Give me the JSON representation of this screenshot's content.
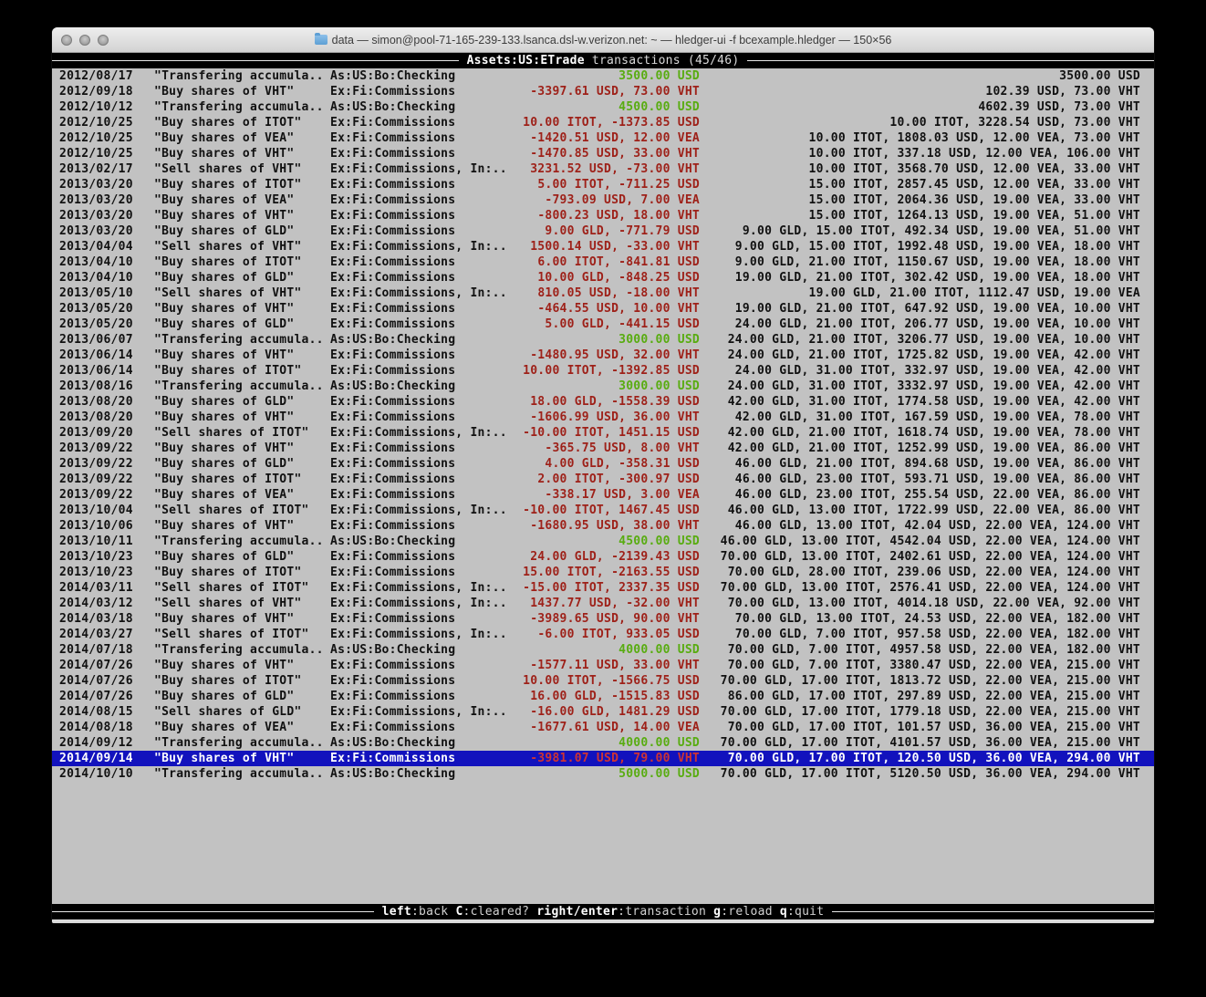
{
  "colors": {
    "red": "#9e2119",
    "green": "#58ac10",
    "selection": "#1212bd",
    "selection-red": "#cd3434",
    "terminal-bg": "#c2c2c2",
    "bar-bg": "#000000"
  },
  "window": {
    "title": "data — simon@pool-71-165-239-133.lsanca.dsl-w.verizon.net: ~ — hledger-ui -f bcexample.hledger — 150×56"
  },
  "screen": {
    "title_account": "Assets:US:ETrade",
    "title_suffix": " transactions (45/46)"
  },
  "statusbar": {
    "items": [
      {
        "key": "left",
        "label": ":back"
      },
      {
        "key": "C",
        "label": ":cleared?"
      },
      {
        "key": "right/enter",
        "label": ":transaction"
      },
      {
        "key": "g",
        "label": ":reload"
      },
      {
        "key": "q",
        "label": ":quit"
      }
    ]
  },
  "register": {
    "rows": [
      {
        "date": "2012/08/17",
        "desc": "\"Transfering accumula..",
        "acct": "As:US:Bo:Checking",
        "amt": "3500.00 USD",
        "amt_color": "green",
        "tot": "3500.00 USD",
        "selected": false
      },
      {
        "date": "2012/09/18",
        "desc": "\"Buy shares of VHT\"",
        "acct": "Ex:Fi:Commissions",
        "amt": "-3397.61 USD, 73.00 VHT",
        "amt_color": "red",
        "tot": "102.39 USD, 73.00 VHT",
        "selected": false
      },
      {
        "date": "2012/10/12",
        "desc": "\"Transfering accumula..",
        "acct": "As:US:Bo:Checking",
        "amt": "4500.00 USD",
        "amt_color": "green",
        "tot": "4602.39 USD, 73.00 VHT",
        "selected": false
      },
      {
        "date": "2012/10/25",
        "desc": "\"Buy shares of ITOT\"",
        "acct": "Ex:Fi:Commissions",
        "amt": "10.00 ITOT, -1373.85 USD",
        "amt_color": "red",
        "tot": "10.00 ITOT, 3228.54 USD, 73.00 VHT",
        "selected": false
      },
      {
        "date": "2012/10/25",
        "desc": "\"Buy shares of VEA\"",
        "acct": "Ex:Fi:Commissions",
        "amt": "-1420.51 USD, 12.00 VEA",
        "amt_color": "red",
        "tot": "10.00 ITOT, 1808.03 USD, 12.00 VEA, 73.00 VHT",
        "selected": false
      },
      {
        "date": "2012/10/25",
        "desc": "\"Buy shares of VHT\"",
        "acct": "Ex:Fi:Commissions",
        "amt": "-1470.85 USD, 33.00 VHT",
        "amt_color": "red",
        "tot": "10.00 ITOT, 337.18 USD, 12.00 VEA, 106.00 VHT",
        "selected": false
      },
      {
        "date": "2013/02/17",
        "desc": "\"Sell shares of VHT\"",
        "acct": "Ex:Fi:Commissions, In:..",
        "amt": "3231.52 USD, -73.00 VHT",
        "amt_color": "red",
        "tot": "10.00 ITOT, 3568.70 USD, 12.00 VEA, 33.00 VHT",
        "selected": false
      },
      {
        "date": "2013/03/20",
        "desc": "\"Buy shares of ITOT\"",
        "acct": "Ex:Fi:Commissions",
        "amt": "5.00 ITOT, -711.25 USD",
        "amt_color": "red",
        "tot": "15.00 ITOT, 2857.45 USD, 12.00 VEA, 33.00 VHT",
        "selected": false
      },
      {
        "date": "2013/03/20",
        "desc": "\"Buy shares of VEA\"",
        "acct": "Ex:Fi:Commissions",
        "amt": "-793.09 USD, 7.00 VEA",
        "amt_color": "red",
        "tot": "15.00 ITOT, 2064.36 USD, 19.00 VEA, 33.00 VHT",
        "selected": false
      },
      {
        "date": "2013/03/20",
        "desc": "\"Buy shares of VHT\"",
        "acct": "Ex:Fi:Commissions",
        "amt": "-800.23 USD, 18.00 VHT",
        "amt_color": "red",
        "tot": "15.00 ITOT, 1264.13 USD, 19.00 VEA, 51.00 VHT",
        "selected": false
      },
      {
        "date": "2013/03/20",
        "desc": "\"Buy shares of GLD\"",
        "acct": "Ex:Fi:Commissions",
        "amt": "9.00 GLD, -771.79 USD",
        "amt_color": "red",
        "tot": "9.00 GLD, 15.00 ITOT, 492.34 USD, 19.00 VEA, 51.00 VHT",
        "selected": false
      },
      {
        "date": "2013/04/04",
        "desc": "\"Sell shares of VHT\"",
        "acct": "Ex:Fi:Commissions, In:..",
        "amt": "1500.14 USD, -33.00 VHT",
        "amt_color": "red",
        "tot": "9.00 GLD, 15.00 ITOT, 1992.48 USD, 19.00 VEA, 18.00 VHT",
        "selected": false
      },
      {
        "date": "2013/04/10",
        "desc": "\"Buy shares of ITOT\"",
        "acct": "Ex:Fi:Commissions",
        "amt": "6.00 ITOT, -841.81 USD",
        "amt_color": "red",
        "tot": "9.00 GLD, 21.00 ITOT, 1150.67 USD, 19.00 VEA, 18.00 VHT",
        "selected": false
      },
      {
        "date": "2013/04/10",
        "desc": "\"Buy shares of GLD\"",
        "acct": "Ex:Fi:Commissions",
        "amt": "10.00 GLD, -848.25 USD",
        "amt_color": "red",
        "tot": "19.00 GLD, 21.00 ITOT, 302.42 USD, 19.00 VEA, 18.00 VHT",
        "selected": false
      },
      {
        "date": "2013/05/10",
        "desc": "\"Sell shares of VHT\"",
        "acct": "Ex:Fi:Commissions, In:..",
        "amt": "810.05 USD, -18.00 VHT",
        "amt_color": "red",
        "tot": "19.00 GLD, 21.00 ITOT, 1112.47 USD, 19.00 VEA",
        "selected": false
      },
      {
        "date": "2013/05/20",
        "desc": "\"Buy shares of VHT\"",
        "acct": "Ex:Fi:Commissions",
        "amt": "-464.55 USD, 10.00 VHT",
        "amt_color": "red",
        "tot": "19.00 GLD, 21.00 ITOT, 647.92 USD, 19.00 VEA, 10.00 VHT",
        "selected": false
      },
      {
        "date": "2013/05/20",
        "desc": "\"Buy shares of GLD\"",
        "acct": "Ex:Fi:Commissions",
        "amt": "5.00 GLD, -441.15 USD",
        "amt_color": "red",
        "tot": "24.00 GLD, 21.00 ITOT, 206.77 USD, 19.00 VEA, 10.00 VHT",
        "selected": false
      },
      {
        "date": "2013/06/07",
        "desc": "\"Transfering accumula..",
        "acct": "As:US:Bo:Checking",
        "amt": "3000.00 USD",
        "amt_color": "green",
        "tot": "24.00 GLD, 21.00 ITOT, 3206.77 USD, 19.00 VEA, 10.00 VHT",
        "selected": false
      },
      {
        "date": "2013/06/14",
        "desc": "\"Buy shares of VHT\"",
        "acct": "Ex:Fi:Commissions",
        "amt": "-1480.95 USD, 32.00 VHT",
        "amt_color": "red",
        "tot": "24.00 GLD, 21.00 ITOT, 1725.82 USD, 19.00 VEA, 42.00 VHT",
        "selected": false
      },
      {
        "date": "2013/06/14",
        "desc": "\"Buy shares of ITOT\"",
        "acct": "Ex:Fi:Commissions",
        "amt": "10.00 ITOT, -1392.85 USD",
        "amt_color": "red",
        "tot": "24.00 GLD, 31.00 ITOT, 332.97 USD, 19.00 VEA, 42.00 VHT",
        "selected": false
      },
      {
        "date": "2013/08/16",
        "desc": "\"Transfering accumula..",
        "acct": "As:US:Bo:Checking",
        "amt": "3000.00 USD",
        "amt_color": "green",
        "tot": "24.00 GLD, 31.00 ITOT, 3332.97 USD, 19.00 VEA, 42.00 VHT",
        "selected": false
      },
      {
        "date": "2013/08/20",
        "desc": "\"Buy shares of GLD\"",
        "acct": "Ex:Fi:Commissions",
        "amt": "18.00 GLD, -1558.39 USD",
        "amt_color": "red",
        "tot": "42.00 GLD, 31.00 ITOT, 1774.58 USD, 19.00 VEA, 42.00 VHT",
        "selected": false
      },
      {
        "date": "2013/08/20",
        "desc": "\"Buy shares of VHT\"",
        "acct": "Ex:Fi:Commissions",
        "amt": "-1606.99 USD, 36.00 VHT",
        "amt_color": "red",
        "tot": "42.00 GLD, 31.00 ITOT, 167.59 USD, 19.00 VEA, 78.00 VHT",
        "selected": false
      },
      {
        "date": "2013/09/20",
        "desc": "\"Sell shares of ITOT\"",
        "acct": "Ex:Fi:Commissions, In:..",
        "amt": "-10.00 ITOT, 1451.15 USD",
        "amt_color": "red",
        "tot": "42.00 GLD, 21.00 ITOT, 1618.74 USD, 19.00 VEA, 78.00 VHT",
        "selected": false
      },
      {
        "date": "2013/09/22",
        "desc": "\"Buy shares of VHT\"",
        "acct": "Ex:Fi:Commissions",
        "amt": "-365.75 USD, 8.00 VHT",
        "amt_color": "red",
        "tot": "42.00 GLD, 21.00 ITOT, 1252.99 USD, 19.00 VEA, 86.00 VHT",
        "selected": false
      },
      {
        "date": "2013/09/22",
        "desc": "\"Buy shares of GLD\"",
        "acct": "Ex:Fi:Commissions",
        "amt": "4.00 GLD, -358.31 USD",
        "amt_color": "red",
        "tot": "46.00 GLD, 21.00 ITOT, 894.68 USD, 19.00 VEA, 86.00 VHT",
        "selected": false
      },
      {
        "date": "2013/09/22",
        "desc": "\"Buy shares of ITOT\"",
        "acct": "Ex:Fi:Commissions",
        "amt": "2.00 ITOT, -300.97 USD",
        "amt_color": "red",
        "tot": "46.00 GLD, 23.00 ITOT, 593.71 USD, 19.00 VEA, 86.00 VHT",
        "selected": false
      },
      {
        "date": "2013/09/22",
        "desc": "\"Buy shares of VEA\"",
        "acct": "Ex:Fi:Commissions",
        "amt": "-338.17 USD, 3.00 VEA",
        "amt_color": "red",
        "tot": "46.00 GLD, 23.00 ITOT, 255.54 USD, 22.00 VEA, 86.00 VHT",
        "selected": false
      },
      {
        "date": "2013/10/04",
        "desc": "\"Sell shares of ITOT\"",
        "acct": "Ex:Fi:Commissions, In:..",
        "amt": "-10.00 ITOT, 1467.45 USD",
        "amt_color": "red",
        "tot": "46.00 GLD, 13.00 ITOT, 1722.99 USD, 22.00 VEA, 86.00 VHT",
        "selected": false
      },
      {
        "date": "2013/10/06",
        "desc": "\"Buy shares of VHT\"",
        "acct": "Ex:Fi:Commissions",
        "amt": "-1680.95 USD, 38.00 VHT",
        "amt_color": "red",
        "tot": "46.00 GLD, 13.00 ITOT, 42.04 USD, 22.00 VEA, 124.00 VHT",
        "selected": false
      },
      {
        "date": "2013/10/11",
        "desc": "\"Transfering accumula..",
        "acct": "As:US:Bo:Checking",
        "amt": "4500.00 USD",
        "amt_color": "green",
        "tot": "46.00 GLD, 13.00 ITOT, 4542.04 USD, 22.00 VEA, 124.00 VHT",
        "selected": false
      },
      {
        "date": "2013/10/23",
        "desc": "\"Buy shares of GLD\"",
        "acct": "Ex:Fi:Commissions",
        "amt": "24.00 GLD, -2139.43 USD",
        "amt_color": "red",
        "tot": "70.00 GLD, 13.00 ITOT, 2402.61 USD, 22.00 VEA, 124.00 VHT",
        "selected": false
      },
      {
        "date": "2013/10/23",
        "desc": "\"Buy shares of ITOT\"",
        "acct": "Ex:Fi:Commissions",
        "amt": "15.00 ITOT, -2163.55 USD",
        "amt_color": "red",
        "tot": "70.00 GLD, 28.00 ITOT, 239.06 USD, 22.00 VEA, 124.00 VHT",
        "selected": false
      },
      {
        "date": "2014/03/11",
        "desc": "\"Sell shares of ITOT\"",
        "acct": "Ex:Fi:Commissions, In:..",
        "amt": "-15.00 ITOT, 2337.35 USD",
        "amt_color": "red",
        "tot": "70.00 GLD, 13.00 ITOT, 2576.41 USD, 22.00 VEA, 124.00 VHT",
        "selected": false
      },
      {
        "date": "2014/03/12",
        "desc": "\"Sell shares of VHT\"",
        "acct": "Ex:Fi:Commissions, In:..",
        "amt": "1437.77 USD, -32.00 VHT",
        "amt_color": "red",
        "tot": "70.00 GLD, 13.00 ITOT, 4014.18 USD, 22.00 VEA, 92.00 VHT",
        "selected": false
      },
      {
        "date": "2014/03/18",
        "desc": "\"Buy shares of VHT\"",
        "acct": "Ex:Fi:Commissions",
        "amt": "-3989.65 USD, 90.00 VHT",
        "amt_color": "red",
        "tot": "70.00 GLD, 13.00 ITOT, 24.53 USD, 22.00 VEA, 182.00 VHT",
        "selected": false
      },
      {
        "date": "2014/03/27",
        "desc": "\"Sell shares of ITOT\"",
        "acct": "Ex:Fi:Commissions, In:..",
        "amt": "-6.00 ITOT, 933.05 USD",
        "amt_color": "red",
        "tot": "70.00 GLD, 7.00 ITOT, 957.58 USD, 22.00 VEA, 182.00 VHT",
        "selected": false
      },
      {
        "date": "2014/07/18",
        "desc": "\"Transfering accumula..",
        "acct": "As:US:Bo:Checking",
        "amt": "4000.00 USD",
        "amt_color": "green",
        "tot": "70.00 GLD, 7.00 ITOT, 4957.58 USD, 22.00 VEA, 182.00 VHT",
        "selected": false
      },
      {
        "date": "2014/07/26",
        "desc": "\"Buy shares of VHT\"",
        "acct": "Ex:Fi:Commissions",
        "amt": "-1577.11 USD, 33.00 VHT",
        "amt_color": "red",
        "tot": "70.00 GLD, 7.00 ITOT, 3380.47 USD, 22.00 VEA, 215.00 VHT",
        "selected": false
      },
      {
        "date": "2014/07/26",
        "desc": "\"Buy shares of ITOT\"",
        "acct": "Ex:Fi:Commissions",
        "amt": "10.00 ITOT, -1566.75 USD",
        "amt_color": "red",
        "tot": "70.00 GLD, 17.00 ITOT, 1813.72 USD, 22.00 VEA, 215.00 VHT",
        "selected": false
      },
      {
        "date": "2014/07/26",
        "desc": "\"Buy shares of GLD\"",
        "acct": "Ex:Fi:Commissions",
        "amt": "16.00 GLD, -1515.83 USD",
        "amt_color": "red",
        "tot": "86.00 GLD, 17.00 ITOT, 297.89 USD, 22.00 VEA, 215.00 VHT",
        "selected": false
      },
      {
        "date": "2014/08/15",
        "desc": "\"Sell shares of GLD\"",
        "acct": "Ex:Fi:Commissions, In:..",
        "amt": "-16.00 GLD, 1481.29 USD",
        "amt_color": "red",
        "tot": "70.00 GLD, 17.00 ITOT, 1779.18 USD, 22.00 VEA, 215.00 VHT",
        "selected": false
      },
      {
        "date": "2014/08/18",
        "desc": "\"Buy shares of VEA\"",
        "acct": "Ex:Fi:Commissions",
        "amt": "-1677.61 USD, 14.00 VEA",
        "amt_color": "red",
        "tot": "70.00 GLD, 17.00 ITOT, 101.57 USD, 36.00 VEA, 215.00 VHT",
        "selected": false
      },
      {
        "date": "2014/09/12",
        "desc": "\"Transfering accumula..",
        "acct": "As:US:Bo:Checking",
        "amt": "4000.00 USD",
        "amt_color": "green",
        "tot": "70.00 GLD, 17.00 ITOT, 4101.57 USD, 36.00 VEA, 215.00 VHT",
        "selected": false
      },
      {
        "date": "2014/09/14",
        "desc": "\"Buy shares of VHT\"",
        "acct": "Ex:Fi:Commissions",
        "amt": "-3981.07 USD, 79.00 VHT",
        "amt_color": "red",
        "tot": "70.00 GLD, 17.00 ITOT, 120.50 USD, 36.00 VEA, 294.00 VHT",
        "selected": true
      },
      {
        "date": "2014/10/10",
        "desc": "\"Transfering accumula..",
        "acct": "As:US:Bo:Checking",
        "amt": "5000.00 USD",
        "amt_color": "green",
        "tot": "70.00 GLD, 17.00 ITOT, 5120.50 USD, 36.00 VEA, 294.00 VHT",
        "selected": false
      }
    ]
  }
}
